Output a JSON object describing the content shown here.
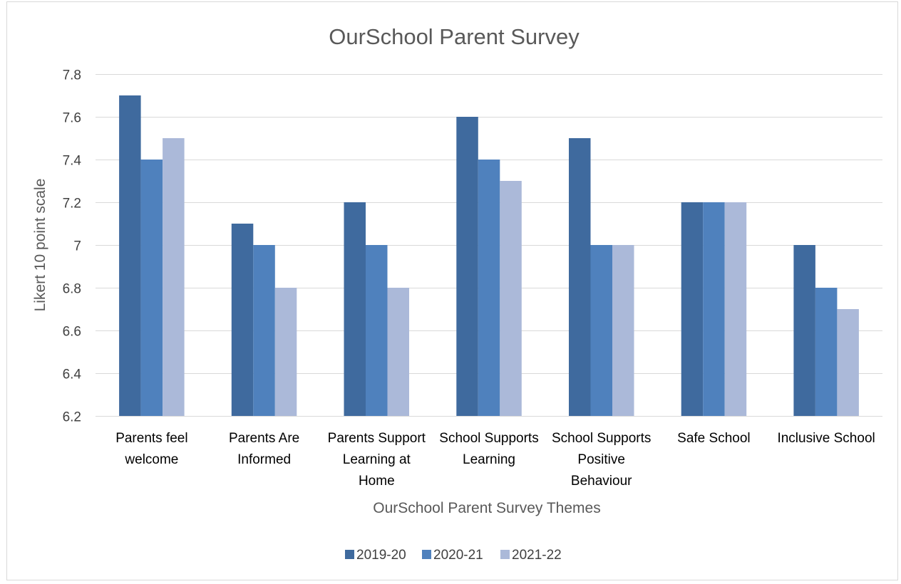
{
  "chart_data": {
    "type": "bar",
    "title": "OurSchool Parent Survey",
    "xlabel": "OurSchool Parent Survey Themes",
    "ylabel": "Likert 10 point scale",
    "ylim": [
      6.2,
      7.8
    ],
    "yticks": [
      "6.2",
      "6.4",
      "6.6",
      "6.8",
      "7",
      "7.2",
      "7.4",
      "7.6",
      "7.8"
    ],
    "grid": true,
    "legend_position": "bottom",
    "categories": [
      [
        "Parents feel",
        "welcome"
      ],
      [
        "Parents Are",
        "Informed"
      ],
      [
        "Parents Support",
        "Learning at",
        "Home"
      ],
      [
        "School Supports",
        "Learning"
      ],
      [
        "School Supports",
        "Positive",
        "Behaviour"
      ],
      [
        "Safe School"
      ],
      [
        "Inclusive School"
      ]
    ],
    "series": [
      {
        "name": "2019-20",
        "color": "#3f6a9e",
        "values": [
          7.7,
          7.1,
          7.2,
          7.6,
          7.5,
          7.2,
          7.0
        ]
      },
      {
        "name": "2020-21",
        "color": "#4f81bd",
        "values": [
          7.4,
          7.0,
          7.0,
          7.4,
          7.0,
          7.2,
          6.8
        ]
      },
      {
        "name": "2021-22",
        "color": "#abb9d9",
        "values": [
          7.5,
          6.8,
          6.8,
          7.3,
          7.0,
          7.2,
          6.7
        ]
      }
    ]
  }
}
